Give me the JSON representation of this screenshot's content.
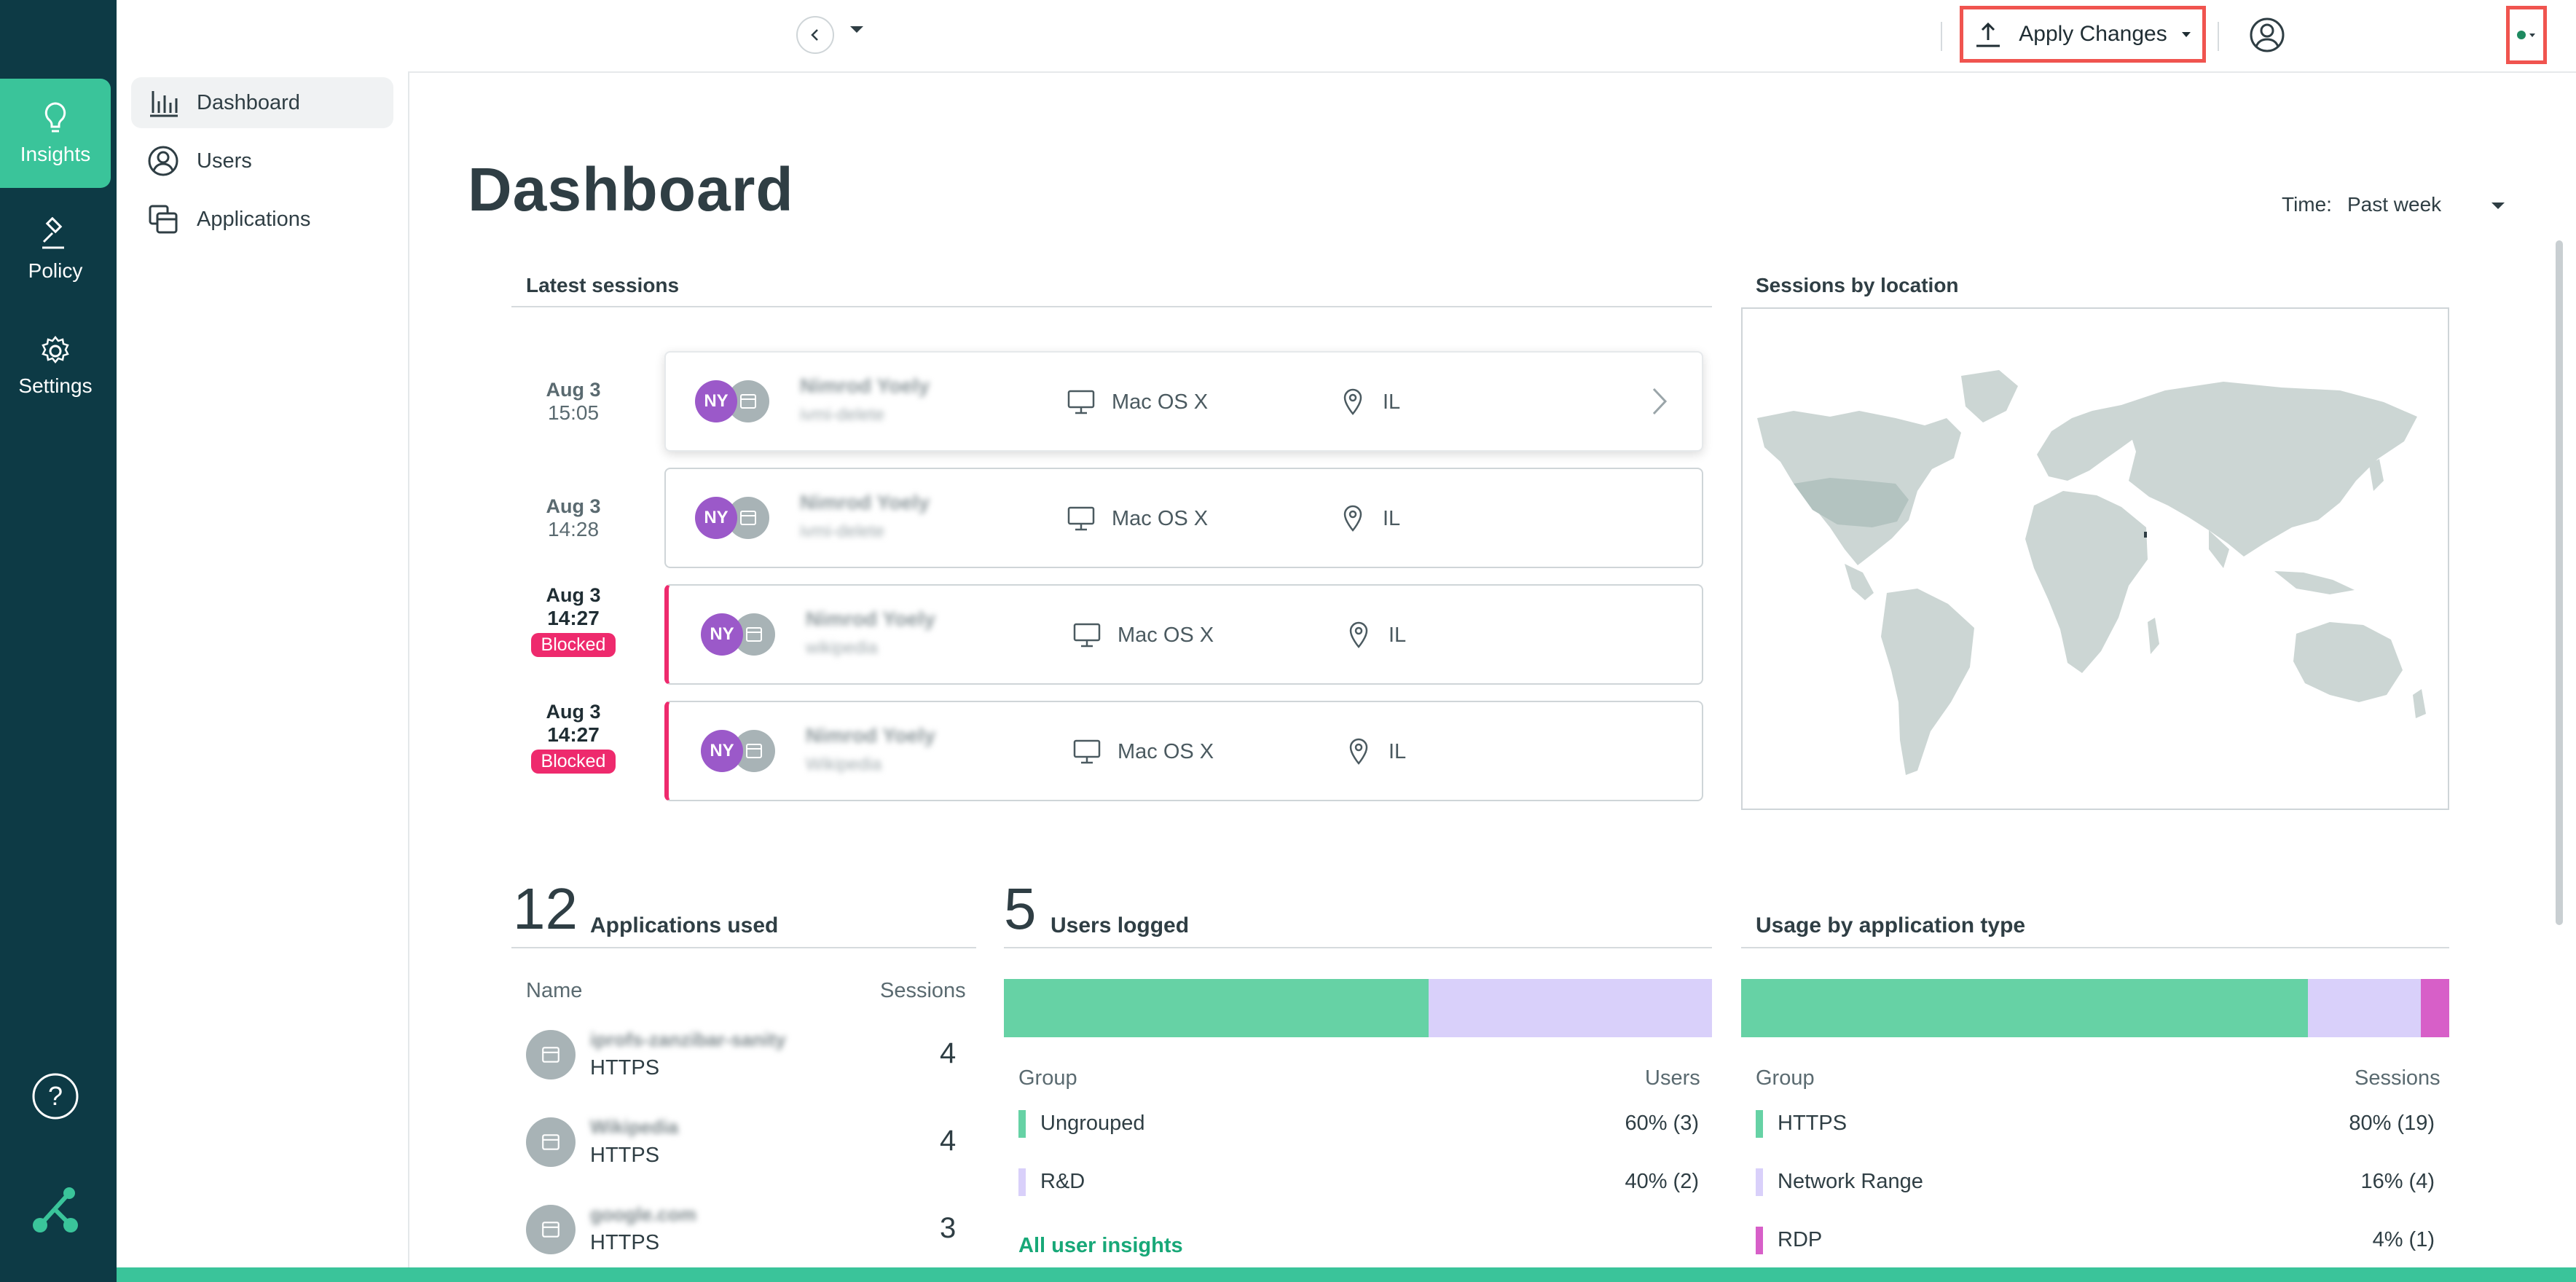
{
  "rail": {
    "items": [
      {
        "label": "Insights",
        "icon": "lightbulb-icon",
        "active": true
      },
      {
        "label": "Policy",
        "icon": "gavel-icon",
        "active": false
      },
      {
        "label": "Settings",
        "icon": "gear-icon",
        "active": false
      }
    ],
    "help_icon": "help-icon",
    "logo_icon": "app-logo-icon"
  },
  "subnav": {
    "items": [
      {
        "label": "Dashboard",
        "icon": "bar-chart-icon",
        "active": true
      },
      {
        "label": "Users",
        "icon": "user-circle-icon",
        "active": false
      },
      {
        "label": "Applications",
        "icon": "applications-icon",
        "active": false
      }
    ]
  },
  "topbar": {
    "apply_label": "Apply Changes"
  },
  "page": {
    "title": "Dashboard",
    "time_label": "Time:",
    "time_value": "Past week"
  },
  "latest_sessions": {
    "title": "Latest sessions",
    "rows": [
      {
        "date": "Aug 3",
        "time": "15:05",
        "blocked": false,
        "initials": "NY",
        "name": "Nimrod Yoely",
        "app": "ivmi-delete",
        "os": "Mac OS X",
        "location": "IL"
      },
      {
        "date": "Aug 3",
        "time": "14:28",
        "blocked": false,
        "initials": "NY",
        "name": "Nimrod Yoely",
        "app": "ivmi-delete",
        "os": "Mac OS X",
        "location": "IL"
      },
      {
        "date": "Aug 3",
        "time": "14:27",
        "blocked": true,
        "initials": "NY",
        "name": "Nimrod Yoely",
        "app": "wikipedia",
        "os": "Mac OS X",
        "location": "IL"
      },
      {
        "date": "Aug 3",
        "time": "14:27",
        "blocked": true,
        "initials": "NY",
        "name": "Nimrod Yoely",
        "app": "Wikipedia",
        "os": "Mac OS X",
        "location": "IL"
      }
    ],
    "blocked_label": "Blocked"
  },
  "sessions_by_location": {
    "title": "Sessions by location"
  },
  "applications_used": {
    "count": "12",
    "label": "Applications used",
    "col_name": "Name",
    "col_sessions": "Sessions",
    "rows": [
      {
        "name": "iprofs-zanzibar-sanity",
        "protocol": "HTTPS",
        "sessions": "4"
      },
      {
        "name": "Wikipedia",
        "protocol": "HTTPS",
        "sessions": "4"
      },
      {
        "name": "google.com",
        "protocol": "HTTPS",
        "sessions": "3"
      }
    ]
  },
  "users_logged": {
    "count": "5",
    "label": "Users logged",
    "col_group": "Group",
    "col_users": "Users",
    "bar": [
      {
        "name": "Ungrouped",
        "fraction": 0.6,
        "color": "#66d2a5"
      },
      {
        "name": "R&D",
        "fraction": 0.4,
        "color": "#d9d0fa"
      }
    ],
    "rows": [
      {
        "name": "Ungrouped",
        "value": "60% (3)",
        "color": "#66d2a5"
      },
      {
        "name": "R&D",
        "value": "40% (2)",
        "color": "#d9d0fa"
      }
    ],
    "link": "All user insights"
  },
  "usage_by_app_type": {
    "label": "Usage by application type",
    "col_group": "Group",
    "col_sessions": "Sessions",
    "bar": [
      {
        "name": "HTTPS",
        "fraction": 0.8,
        "color": "#66d2a5"
      },
      {
        "name": "Network Range",
        "fraction": 0.16,
        "color": "#d9d0fa"
      },
      {
        "name": "RDP",
        "fraction": 0.04,
        "color": "#d75fc8"
      }
    ],
    "rows": [
      {
        "name": "HTTPS",
        "value": "80% (19)",
        "color": "#66d2a5"
      },
      {
        "name": "Network Range",
        "value": "16% (4)",
        "color": "#d9d0fa"
      },
      {
        "name": "RDP",
        "value": "4% (1)",
        "color": "#d75fc8"
      }
    ]
  }
}
